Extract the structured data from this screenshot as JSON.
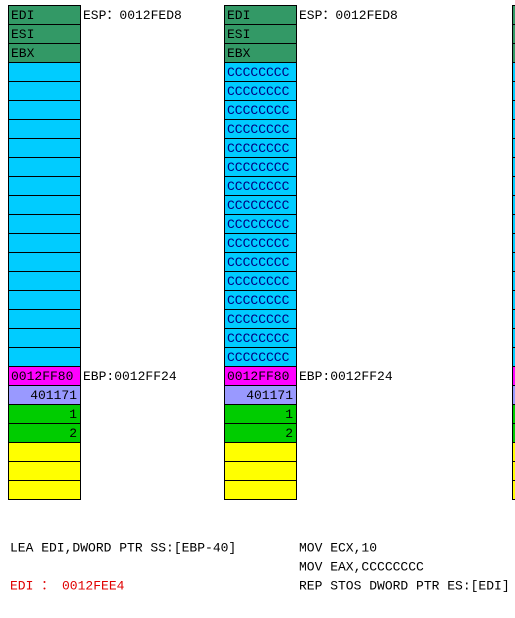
{
  "left_stack": {
    "registers": [
      "EDI",
      "ESI",
      "EBX"
    ],
    "esp_label": "ESP：0012FED8",
    "ebp_label": "EBP:0012FF24",
    "frame": [
      "0012FF80",
      "401171",
      "1",
      "2"
    ]
  },
  "right_stack": {
    "registers": [
      "EDI",
      "ESI",
      "EBX"
    ],
    "esp_label": "ESP：0012FED8",
    "fill": [
      "CCCCCCCC",
      "CCCCCCCC",
      "CCCCCCCC",
      "CCCCCCCC",
      "CCCCCCCC",
      "CCCCCCCC",
      "CCCCCCCC",
      "CCCCCCCC",
      "CCCCCCCC",
      "CCCCCCCC",
      "CCCCCCCC",
      "CCCCCCCC",
      "CCCCCCCC",
      "CCCCCCCC",
      "CCCCCCCC",
      "CCCCCCCC"
    ],
    "ebp_label": "EBP:0012FF24",
    "frame": [
      "0012FF80",
      "401171",
      "1",
      "2"
    ]
  },
  "code_left": {
    "instruction": "LEA EDI,DWORD PTR SS:[EBP-40]",
    "result": "EDI ： 0012FEE4"
  },
  "code_right": {
    "instructions": [
      "MOV ECX,10",
      "MOV EAX,CCCCCCCC",
      "REP STOS DWORD PTR ES:[EDI]"
    ]
  }
}
